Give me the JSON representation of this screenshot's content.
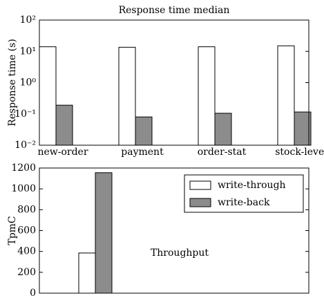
{
  "chart_data": [
    {
      "type": "bar",
      "title": "Response time median",
      "ylabel": "Response time (s)",
      "categories": [
        "new-order",
        "payment",
        "order-stat",
        "stock-level"
      ],
      "series": [
        {
          "name": "write-through",
          "color": "#ffffff",
          "values": [
            14,
            13.5,
            14,
            15
          ]
        },
        {
          "name": "write-back",
          "color": "#8c8c8c",
          "values": [
            0.19,
            0.08,
            0.105,
            0.115
          ]
        }
      ],
      "yscale": "log",
      "ylim": [
        0.01,
        100
      ],
      "yticks": [
        {
          "value": 0.01,
          "label": "10⁻²"
        },
        {
          "value": 0.1,
          "label": "10⁻¹"
        },
        {
          "value": 1,
          "label": "10⁰"
        },
        {
          "value": 10,
          "label": "10¹"
        },
        {
          "value": 100,
          "label": "10²"
        }
      ]
    },
    {
      "type": "bar",
      "ylabel": "TpmC",
      "annotation": "Throughput",
      "categories": [
        null
      ],
      "series": [
        {
          "name": "write-through",
          "color": "#ffffff",
          "values": [
            385
          ]
        },
        {
          "name": "write-back",
          "color": "#8c8c8c",
          "values": [
            1155
          ]
        }
      ],
      "ylim": [
        0,
        1200
      ],
      "yticks": [
        0,
        200,
        400,
        600,
        800,
        1000,
        1200
      ],
      "legend": "upper right"
    }
  ]
}
